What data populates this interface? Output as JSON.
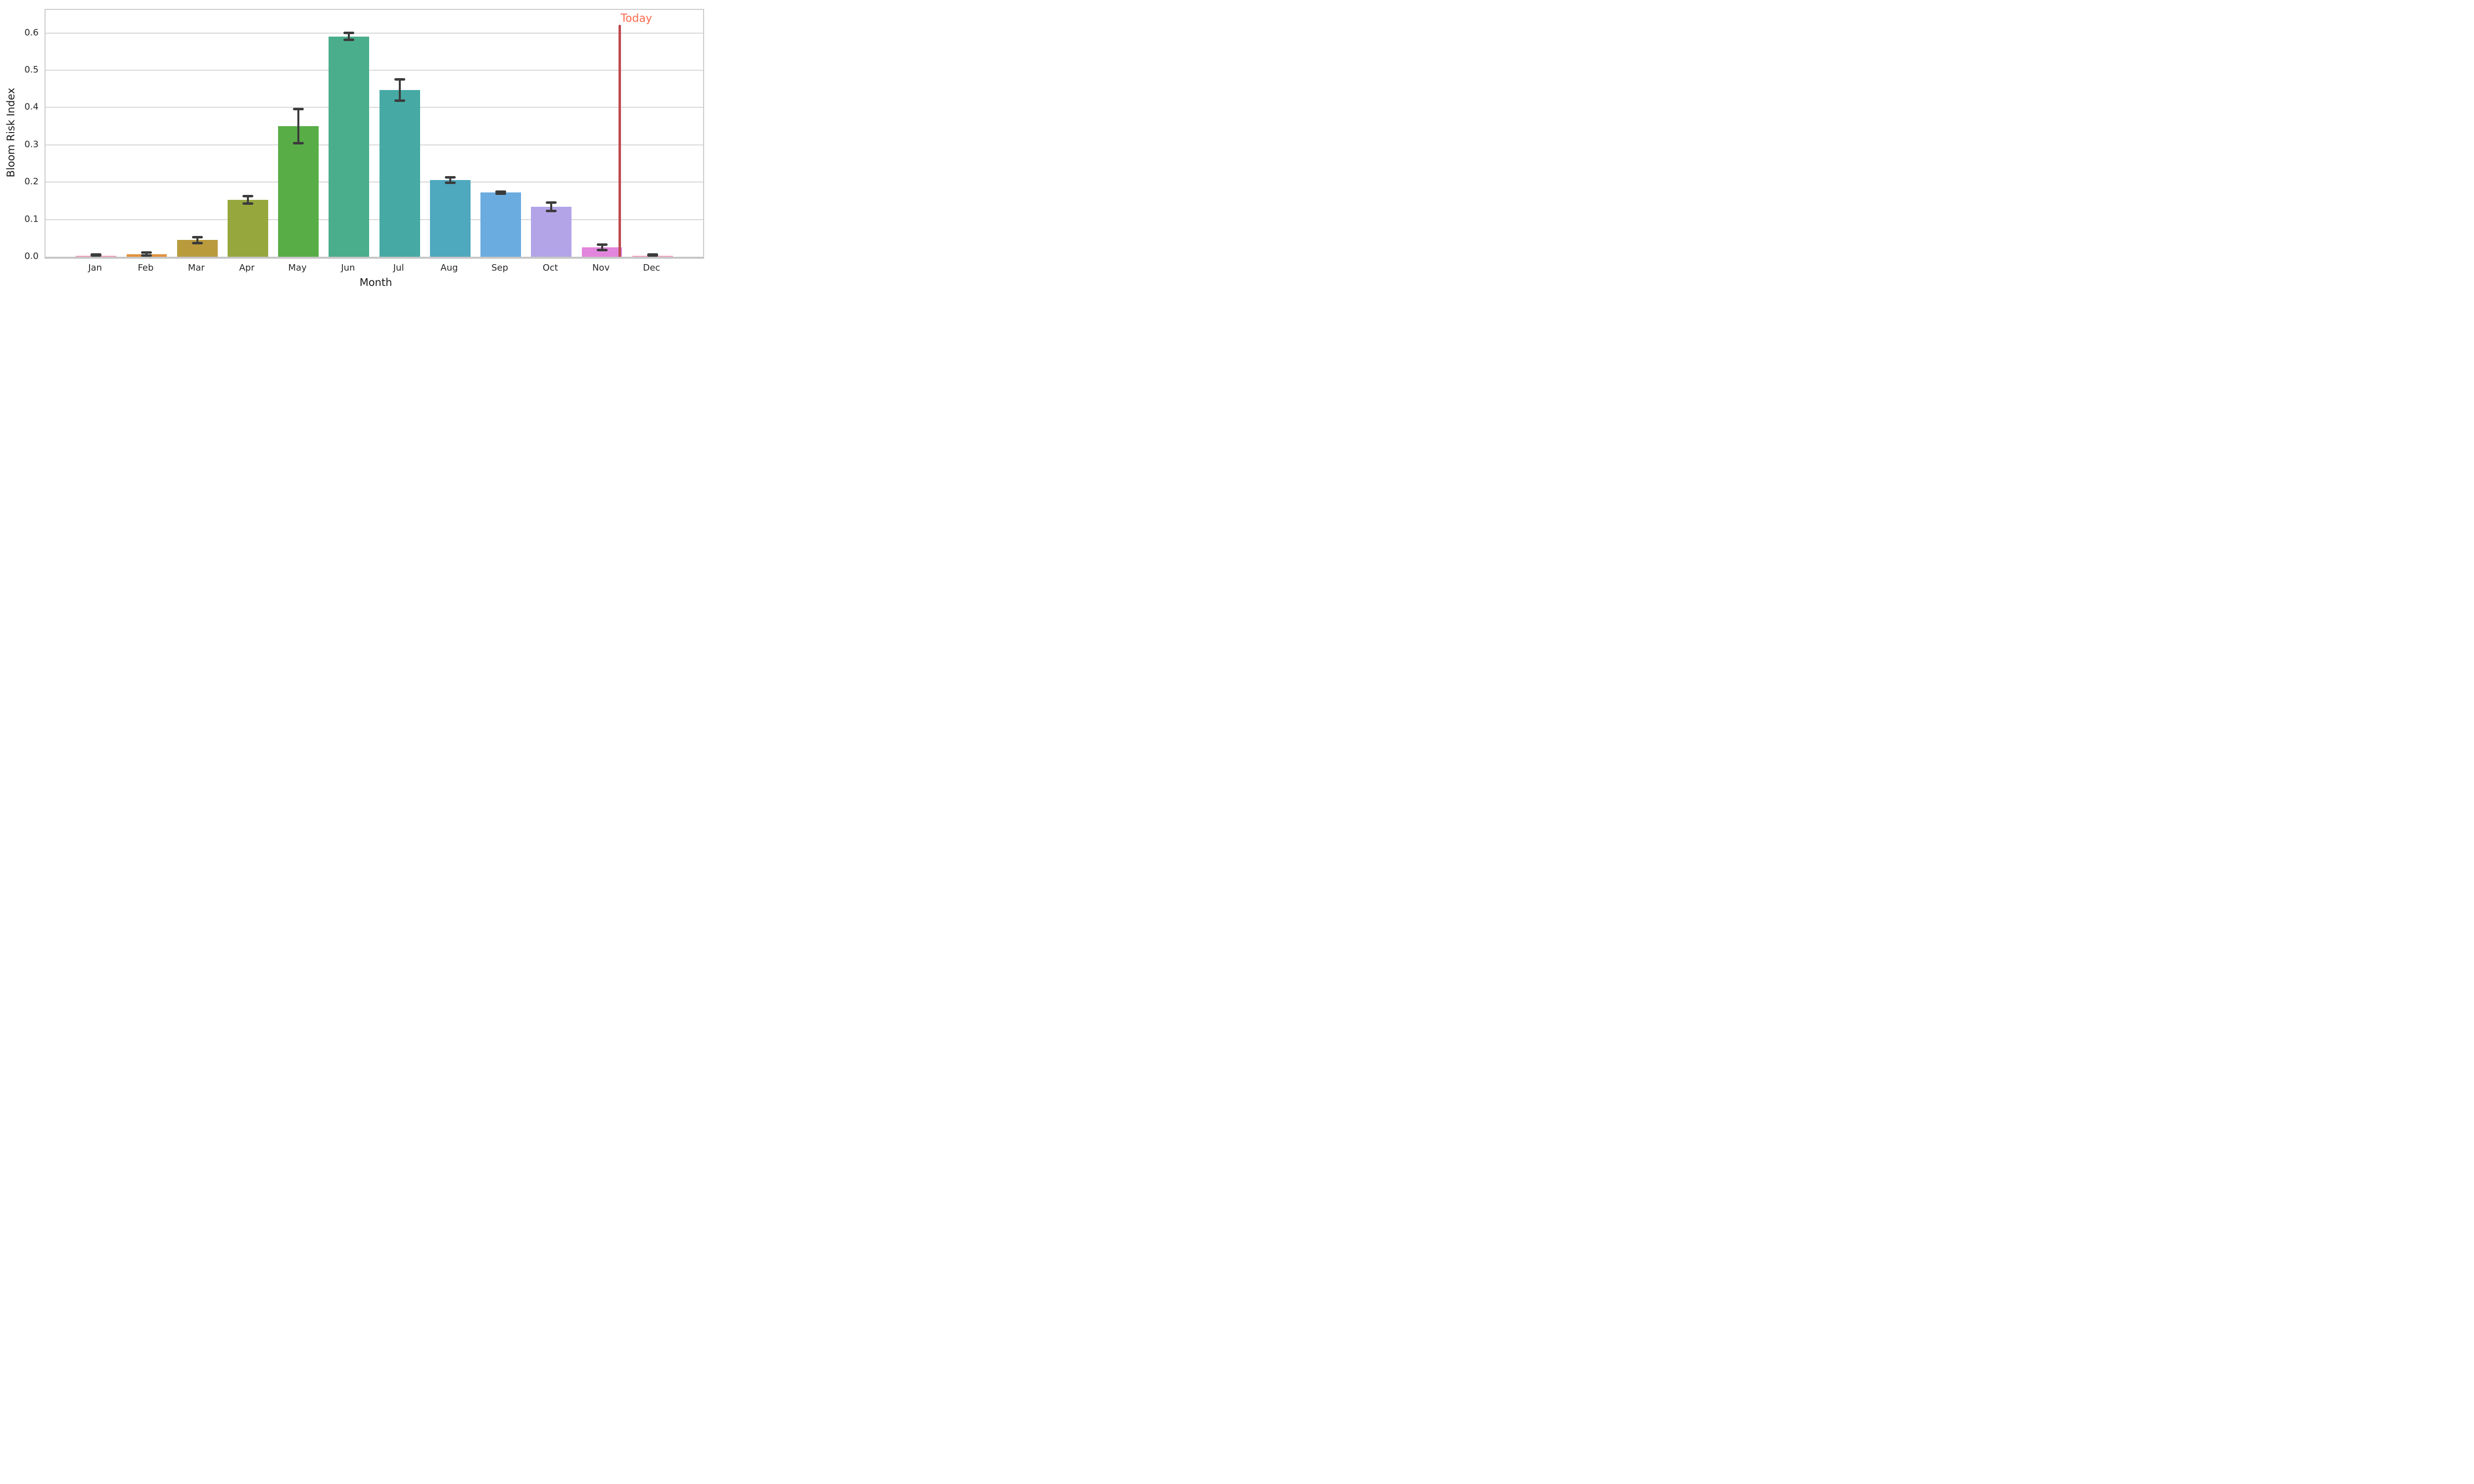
{
  "chart_data": {
    "type": "bar",
    "title": "",
    "xlabel": "Month",
    "ylabel": "Bloom Risk Index",
    "categories": [
      "Jan",
      "Feb",
      "Mar",
      "Apr",
      "May",
      "Jun",
      "Jul",
      "Aug",
      "Sep",
      "Oct",
      "Nov",
      "Dec"
    ],
    "values": [
      0.003,
      0.006,
      0.045,
      0.152,
      0.35,
      0.591,
      0.447,
      0.206,
      0.172,
      0.134,
      0.025,
      0.003
    ],
    "errors": [
      0.003,
      0.005,
      0.008,
      0.01,
      0.046,
      0.009,
      0.029,
      0.007,
      0.003,
      0.011,
      0.007,
      0.003
    ],
    "bar_colors": [
      "#EFA0B5",
      "#E2923E",
      "#B99B3C",
      "#96A73E",
      "#58AD47",
      "#4AAE8C",
      "#46A9A4",
      "#4EA8BE",
      "#6BACE0",
      "#B3A4E8",
      "#E285DD",
      "#F3A2C5"
    ],
    "y_ticks": [
      "0.0",
      "0.1",
      "0.2",
      "0.3",
      "0.4",
      "0.5",
      "0.6"
    ],
    "y_tick_values": [
      0.0,
      0.1,
      0.2,
      0.3,
      0.4,
      0.5,
      0.6
    ],
    "ylim": [
      0,
      0.662
    ],
    "grid": "horizontal-only",
    "legend": "none",
    "annotation": {
      "label": "Today",
      "month_position": 10.35,
      "line_top_value": 0.622,
      "line_color": "#BE4A50",
      "text_color": "#FA6A4C"
    }
  },
  "colors": {
    "background": "#FFFFFF",
    "gridline": "#D8D8D8",
    "spine": "#CBCBCB",
    "error_bar": "#3B3B3B",
    "tick_text": "#262626",
    "label_text": "#1A1A1A"
  }
}
